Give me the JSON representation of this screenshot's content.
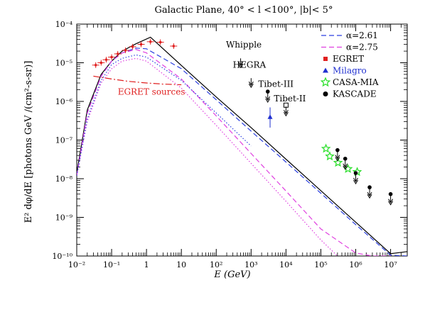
{
  "chart_data": {
    "type": "line",
    "title": "Galactic Plane, 40° < l <100°, |b|< 5°",
    "xlabel": "E (GeV)",
    "ylabel": "E² dφ/dE   [photons GeV /(cm²-s-sr)]",
    "xscale": "log",
    "yscale": "log",
    "xlim": [
      0.01,
      30000000
    ],
    "ylim": [
      1e-10,
      0.0001
    ],
    "x_ticks": [
      "10⁻²",
      "10⁻¹",
      "1",
      "10",
      "10²",
      "10³",
      "10⁴",
      "10⁵",
      "10⁶",
      "10⁷"
    ],
    "y_ticks": [
      "10⁻¹⁰",
      "10⁻⁹",
      "10⁻⁸",
      "10⁻⁷",
      "10⁻⁶",
      "10⁻⁵",
      "10⁻⁴"
    ],
    "legend": {
      "placement": "top-right",
      "entries": [
        {
          "label": "α=2.61",
          "color": "#2b3fe0",
          "style": "dashed"
        },
        {
          "label": "α=2.75",
          "color": "#e040e0",
          "style": "dashed"
        },
        {
          "label": "EGRET",
          "color": "#e02020",
          "marker": "square"
        },
        {
          "label": "Milagro",
          "color": "#2030d0",
          "marker": "triangle"
        },
        {
          "label": "CASA-MIA",
          "color": "#30e030",
          "marker": "star"
        },
        {
          "label": "KASCADE",
          "color": "#000000",
          "marker": "circle"
        }
      ]
    },
    "annotations": [
      {
        "text": "EGRET sources",
        "x": 0.15,
        "y": 1.5e-06,
        "color": "#e02020"
      },
      {
        "text": "Whipple",
        "x": 190,
        "y": 2.5e-05,
        "color": "#000000"
      },
      {
        "text": "HEGRA",
        "x": 300,
        "y": 7.5e-06,
        "color": "#000000"
      },
      {
        "text": "Tibet-III",
        "x": 1600,
        "y": 2.4e-06,
        "color": "#000000"
      },
      {
        "text": "Tibet-II",
        "x": 4500,
        "y": 1e-06,
        "color": "#000000"
      }
    ],
    "series": [
      {
        "kind": "line",
        "color": "#000000",
        "style": "solid",
        "x": [
          0.01,
          0.02,
          0.05,
          0.1,
          0.2,
          0.5,
          1.3,
          10,
          100,
          1000,
          10000,
          100000,
          1000000,
          10000000,
          30000000
        ],
        "y": [
          1.4e-08,
          6e-07,
          5e-06,
          1.1e-05,
          2e-05,
          3.1e-05,
          4.6e-05,
          8.5e-06,
          1.3e-06,
          2.1e-07,
          3.2e-08,
          4.9e-09,
          7.5e-10,
          1.15e-10,
          1.3e-10
        ]
      },
      {
        "kind": "line",
        "color": "#2b3fe0",
        "style": "dashed",
        "x": [
          0.01,
          0.02,
          0.05,
          0.1,
          0.2,
          0.5,
          1,
          10,
          100,
          1000,
          10000,
          100000,
          1000000,
          10000000,
          30000000
        ],
        "y": [
          1.2e-08,
          5e-07,
          4.5e-06,
          1.1e-05,
          1.8e-05,
          2.4e-05,
          2.3e-05,
          7e-06,
          1.1e-06,
          1.7e-07,
          2.7e-08,
          4.2e-09,
          6.5e-10,
          1.05e-10,
          1e-10
        ]
      },
      {
        "kind": "line",
        "color": "#e040e0",
        "style": "dashed",
        "x": [
          0.01,
          0.02,
          0.05,
          0.1,
          0.2,
          0.5,
          1,
          10,
          100,
          1000,
          10000,
          100000,
          1000000,
          3000000,
          10000000
        ],
        "y": [
          1.2e-08,
          5e-07,
          4.5e-06,
          1.1e-05,
          1.8e-05,
          2.2e-05,
          1.8e-05,
          3.8e-06,
          4.2e-07,
          4.5e-08,
          4.8e-09,
          5e-10,
          1.2e-10,
          1e-10,
          1e-10
        ]
      },
      {
        "kind": "line",
        "color": "#e040e0",
        "style": "dotted",
        "x": [
          0.01,
          0.02,
          0.05,
          0.1,
          0.2,
          0.5,
          1,
          10,
          100,
          1000,
          10000,
          100000,
          300000
        ],
        "y": [
          1.2e-08,
          3e-07,
          3e-06,
          7e-06,
          1.1e-05,
          1.3e-05,
          1.1e-05,
          2.2e-06,
          2.4e-07,
          2.5e-08,
          2.6e-09,
          2.6e-10,
          1e-10
        ]
      },
      {
        "kind": "line",
        "color": "#2b3fe0",
        "style": "dotted",
        "x": [
          0.01,
          0.02,
          0.05,
          0.1,
          0.2,
          0.5,
          1,
          10,
          100,
          1000
        ],
        "y": [
          1.2e-08,
          3.5e-07,
          3.5e-06,
          9e-06,
          1.3e-05,
          1.6e-05,
          1.4e-05,
          3.5e-06,
          5e-07,
          7e-08
        ]
      },
      {
        "kind": "line",
        "color": "#e02020",
        "style": "dashdot",
        "x": [
          0.03,
          0.1,
          0.3,
          1,
          3,
          10
        ],
        "y": [
          4.5e-06,
          3.8e-06,
          3.3e-06,
          3e-06,
          2.8e-06,
          2.7e-06
        ]
      },
      {
        "kind": "points",
        "name": "EGRET",
        "marker": "cross-err",
        "color": "#e02020",
        "x": [
          0.035,
          0.05,
          0.07,
          0.1,
          0.15,
          0.25,
          0.4,
          0.7,
          1.3,
          2.5,
          6
        ],
        "y": [
          8.7e-06,
          1e-05,
          1.2e-05,
          1.4e-05,
          1.7e-05,
          2.1e-05,
          2.6e-05,
          3e-05,
          3.5e-05,
          3.4e-05,
          2.7e-05
        ]
      },
      {
        "kind": "points",
        "name": "Milagro",
        "marker": "triangle",
        "color": "#2030d0",
        "x": [
          3500
        ],
        "y": [
          4e-07
        ],
        "err_lo": [
          2.1e-07
        ],
        "err_hi": [
          7e-07
        ]
      },
      {
        "kind": "points",
        "name": "CASA-MIA",
        "marker": "star",
        "color": "#30e030",
        "x": [
          140000,
          180000,
          310000,
          600000,
          1100000
        ],
        "y": [
          6e-08,
          3.8e-08,
          2.6e-08,
          1.8e-08,
          1.5e-08
        ]
      },
      {
        "kind": "points",
        "name": "KASCADE",
        "marker": "circle-limit",
        "color": "#000000",
        "x": [
          300000,
          500000,
          1000000,
          2500000,
          10000000
        ],
        "y": [
          5.5e-08,
          3.3e-08,
          1.4e-08,
          6e-09,
          4e-09
        ]
      },
      {
        "kind": "points",
        "name": "Whipple",
        "marker": "arrow-limit",
        "color": "#000000",
        "x": [
          500
        ],
        "y": [
          1.3e-05
        ]
      },
      {
        "kind": "points",
        "name": "HEGRA",
        "marker": "arrow-limit",
        "color": "#000000",
        "x": [
          1000
        ],
        "y": [
          4e-06
        ]
      },
      {
        "kind": "points",
        "name": "Tibet-III",
        "marker": "circle-limit",
        "color": "#000000",
        "x": [
          3000
        ],
        "y": [
          1.8e-06
        ]
      },
      {
        "kind": "points",
        "name": "Tibet-II",
        "marker": "square-limit",
        "color": "#000000",
        "x": [
          10000
        ],
        "y": [
          8e-07
        ]
      }
    ]
  }
}
